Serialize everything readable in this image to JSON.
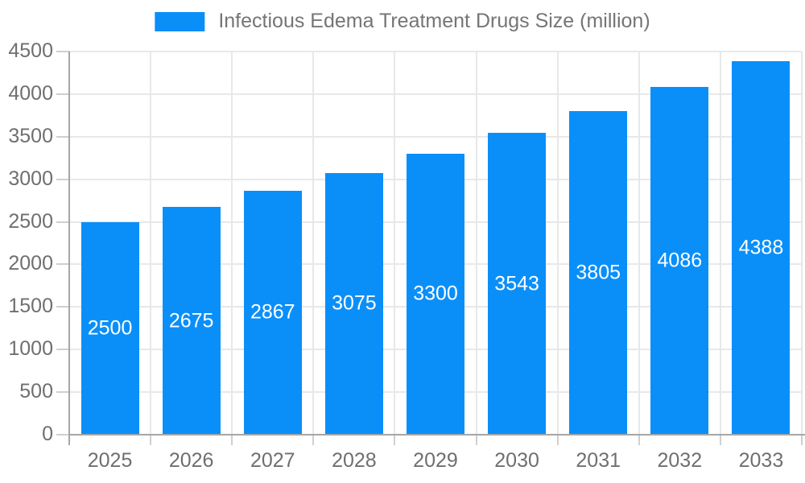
{
  "legend": {
    "label": "Infectious Edema Treatment Drugs Size (million)"
  },
  "chart_data": {
    "type": "bar",
    "title": "Infectious Edema Treatment Drugs Size (million)",
    "categories": [
      "2025",
      "2026",
      "2027",
      "2028",
      "2029",
      "2030",
      "2031",
      "2032",
      "2033"
    ],
    "values": [
      2500,
      2675,
      2867,
      3075,
      3300,
      3543,
      3805,
      4086,
      4388
    ],
    "xlabel": "",
    "ylabel": "",
    "ylim": [
      0,
      4500
    ],
    "ytick_step": 500,
    "yticks": [
      0,
      500,
      1000,
      1500,
      2000,
      2500,
      3000,
      3500,
      4000,
      4500
    ],
    "grid": true,
    "legend_position": "top",
    "value_labels": "inside-middle"
  },
  "colors": {
    "bar": "#0a8ff9",
    "axis": "#a6a6a6",
    "grid": "#e8e8e8",
    "tick": "#cfcfcf",
    "axis_text": "#6f6f6f",
    "legend_text": "#757575",
    "value_label_text": "#ffffff",
    "background": "#ffffff"
  }
}
